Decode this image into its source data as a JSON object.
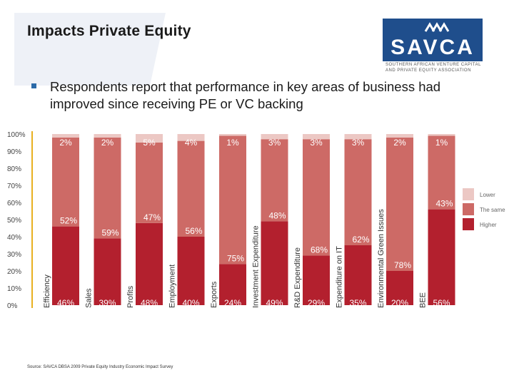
{
  "title": "Impacts Private Equity",
  "logo": {
    "name": "SAVCA",
    "line1": "SOUTHERN AFRICAN VENTURE CAPITAL",
    "line2": "AND PRIVATE EQUITY ASSOCIATION"
  },
  "bullet": "Respondents report that performance in key areas of business had improved since receiving PE or VC backing",
  "source": "Source: SAVCA DBSA 2009 Private Equity Industry Economic Impact Survey",
  "colors": {
    "lower": "#ecc8c4",
    "same": "#cd6a66",
    "higher": "#b3202e"
  },
  "chart_data": {
    "type": "bar",
    "stacked": true,
    "percent_axis": true,
    "ylim": [
      0,
      100
    ],
    "y_ticks": [
      "0%",
      "10%",
      "20%",
      "30%",
      "40%",
      "50%",
      "60%",
      "70%",
      "80%",
      "90%",
      "100%"
    ],
    "categories": [
      "Efficiency",
      "Sales",
      "Profits",
      "Employment",
      "Exports",
      "Investment Expenditure",
      "R&D Expenditure",
      "Expenditure on IT",
      "Environmental Green Issues",
      "BEE"
    ],
    "series": [
      {
        "name": "Higher",
        "values": [
          46,
          39,
          48,
          40,
          24,
          49,
          29,
          35,
          20,
          56
        ],
        "labels": [
          "46%",
          "39%",
          "48%",
          "40%",
          "24%",
          "49%",
          "29%",
          "35%",
          "20%",
          "56%"
        ]
      },
      {
        "name": "The same",
        "values": [
          52,
          59,
          47,
          56,
          75,
          48,
          68,
          62,
          78,
          43
        ],
        "labels": [
          "52%",
          "59%",
          "47%",
          "56%",
          "75%",
          "48%",
          "68%",
          "62%",
          "78%",
          "43%"
        ]
      },
      {
        "name": "Lower",
        "values": [
          2,
          2,
          5,
          4,
          1,
          3,
          3,
          3,
          2,
          1
        ],
        "labels": [
          "2%",
          "2%",
          "5%",
          "4%",
          "1%",
          "3%",
          "3%",
          "3%",
          "2%",
          "1%"
        ]
      }
    ],
    "legend": [
      "Lower",
      "The same",
      "Higher"
    ],
    "legend_position": "right"
  }
}
